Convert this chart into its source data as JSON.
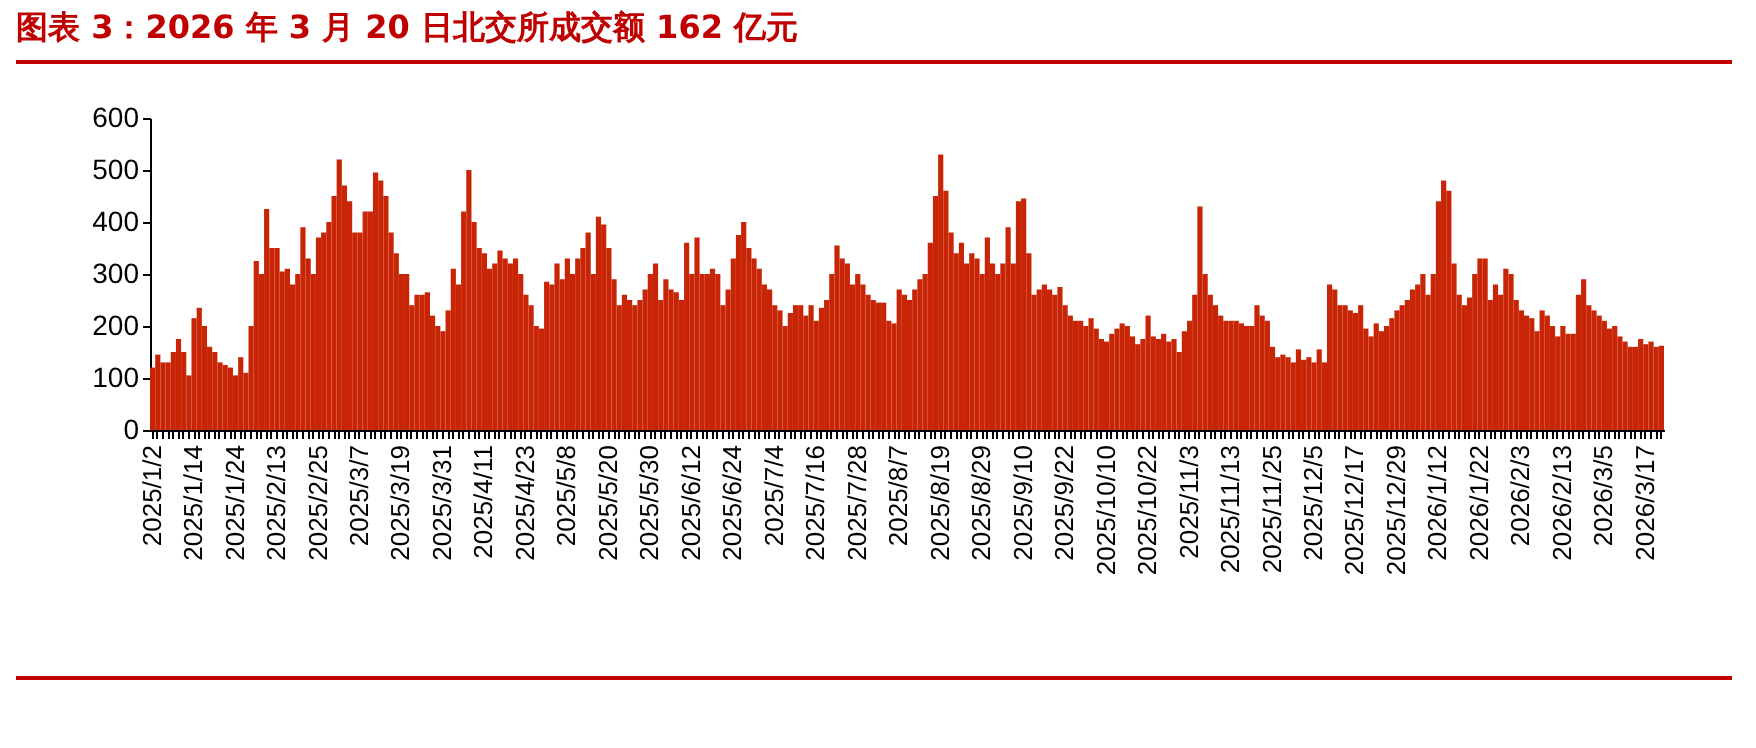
{
  "chart_data": {
    "type": "bar",
    "title": "图表 3：2026 年 3 月 20 日北交所成交额 162 亿元",
    "categories": [
      "2025/1/2",
      null,
      null,
      null,
      null,
      null,
      null,
      null,
      "2025/1/14",
      null,
      null,
      null,
      null,
      null,
      null,
      null,
      "2025/1/24",
      null,
      null,
      null,
      null,
      null,
      null,
      null,
      "2025/2/13",
      null,
      null,
      null,
      null,
      null,
      null,
      null,
      "2025/2/25",
      null,
      null,
      null,
      null,
      null,
      null,
      null,
      "2025/3/7",
      null,
      null,
      null,
      null,
      null,
      null,
      null,
      "2025/3/19",
      null,
      null,
      null,
      null,
      null,
      null,
      null,
      "2025/3/31",
      null,
      null,
      null,
      null,
      null,
      null,
      null,
      "2025/4/11",
      null,
      null,
      null,
      null,
      null,
      null,
      null,
      "2025/4/23",
      null,
      null,
      null,
      null,
      null,
      null,
      null,
      "2025/5/8",
      null,
      null,
      null,
      null,
      null,
      null,
      null,
      "2025/5/20",
      null,
      null,
      null,
      null,
      null,
      null,
      null,
      "2025/5/30",
      null,
      null,
      null,
      null,
      null,
      null,
      null,
      "2025/6/12",
      null,
      null,
      null,
      null,
      null,
      null,
      null,
      "2025/6/24",
      null,
      null,
      null,
      null,
      null,
      null,
      null,
      "2025/7/4",
      null,
      null,
      null,
      null,
      null,
      null,
      null,
      "2025/7/16",
      null,
      null,
      null,
      null,
      null,
      null,
      null,
      "2025/7/28",
      null,
      null,
      null,
      null,
      null,
      null,
      null,
      "2025/8/7",
      null,
      null,
      null,
      null,
      null,
      null,
      null,
      "2025/8/19",
      null,
      null,
      null,
      null,
      null,
      null,
      null,
      "2025/8/29",
      null,
      null,
      null,
      null,
      null,
      null,
      null,
      "2025/9/10",
      null,
      null,
      null,
      null,
      null,
      null,
      null,
      "2025/9/22",
      null,
      null,
      null,
      null,
      null,
      null,
      null,
      "2025/10/10",
      null,
      null,
      null,
      null,
      null,
      null,
      null,
      "2025/10/22",
      null,
      null,
      null,
      null,
      null,
      null,
      null,
      "2025/11/3",
      null,
      null,
      null,
      null,
      null,
      null,
      null,
      "2025/11/13",
      null,
      null,
      null,
      null,
      null,
      null,
      null,
      "2025/11/25",
      null,
      null,
      null,
      null,
      null,
      null,
      null,
      "2025/12/5",
      null,
      null,
      null,
      null,
      null,
      null,
      null,
      "2025/12/17",
      null,
      null,
      null,
      null,
      null,
      null,
      null,
      "2025/12/29",
      null,
      null,
      null,
      null,
      null,
      null,
      null,
      "2026/1/12",
      null,
      null,
      null,
      null,
      null,
      null,
      null,
      "2026/1/22",
      null,
      null,
      null,
      null,
      null,
      null,
      null,
      "2026/2/3",
      null,
      null,
      null,
      null,
      null,
      null,
      null,
      "2026/2/13",
      null,
      null,
      null,
      null,
      null,
      null,
      null,
      "2026/3/5",
      null,
      null,
      null,
      null,
      null,
      null,
      null,
      "2026/3/17",
      null,
      null,
      null
    ],
    "values": [
      120,
      145,
      130,
      130,
      150,
      175,
      150,
      105,
      215,
      235,
      200,
      160,
      150,
      130,
      125,
      120,
      105,
      140,
      110,
      200,
      325,
      300,
      425,
      350,
      350,
      305,
      310,
      280,
      300,
      390,
      330,
      300,
      370,
      380,
      400,
      450,
      520,
      470,
      440,
      380,
      380,
      420,
      420,
      495,
      480,
      450,
      380,
      340,
      300,
      300,
      240,
      260,
      260,
      265,
      220,
      200,
      190,
      230,
      310,
      280,
      420,
      500,
      400,
      350,
      340,
      310,
      320,
      345,
      330,
      320,
      330,
      300,
      260,
      240,
      200,
      195,
      285,
      280,
      320,
      290,
      330,
      300,
      330,
      350,
      380,
      300,
      410,
      395,
      350,
      290,
      240,
      260,
      250,
      240,
      250,
      270,
      300,
      320,
      250,
      290,
      270,
      265,
      250,
      360,
      300,
      370,
      300,
      300,
      310,
      300,
      240,
      270,
      330,
      375,
      400,
      350,
      330,
      310,
      280,
      270,
      240,
      230,
      200,
      225,
      240,
      240,
      220,
      240,
      210,
      235,
      250,
      300,
      355,
      330,
      320,
      280,
      300,
      280,
      260,
      250,
      245,
      245,
      210,
      205,
      270,
      260,
      250,
      270,
      290,
      300,
      360,
      450,
      530,
      460,
      380,
      340,
      360,
      320,
      340,
      330,
      300,
      370,
      320,
      300,
      320,
      390,
      320,
      440,
      445,
      340,
      260,
      270,
      280,
      270,
      260,
      275,
      240,
      220,
      210,
      210,
      200,
      215,
      195,
      175,
      170,
      185,
      195,
      205,
      200,
      180,
      165,
      175,
      220,
      180,
      175,
      185,
      170,
      175,
      150,
      190,
      210,
      260,
      430,
      300,
      260,
      240,
      220,
      210,
      210,
      210,
      205,
      200,
      200,
      240,
      220,
      210,
      160,
      140,
      145,
      140,
      130,
      155,
      135,
      140,
      130,
      155,
      130,
      280,
      270,
      240,
      240,
      230,
      225,
      240,
      195,
      180,
      205,
      190,
      200,
      215,
      230,
      240,
      250,
      270,
      280,
      300,
      260,
      300,
      440,
      480,
      460,
      320,
      260,
      240,
      255,
      300,
      330,
      330,
      250,
      280,
      260,
      310,
      300,
      250,
      230,
      220,
      215,
      190,
      230,
      220,
      200,
      180,
      200,
      185,
      185,
      260,
      290,
      240,
      230,
      220,
      210,
      195,
      200,
      180,
      170,
      160,
      160,
      175,
      165,
      170,
      160,
      162
    ],
    "color": "#c82506",
    "ylim": [
      0,
      600
    ],
    "yticks": [
      0,
      100,
      200,
      300,
      400,
      500,
      600
    ],
    "grid": false
  }
}
